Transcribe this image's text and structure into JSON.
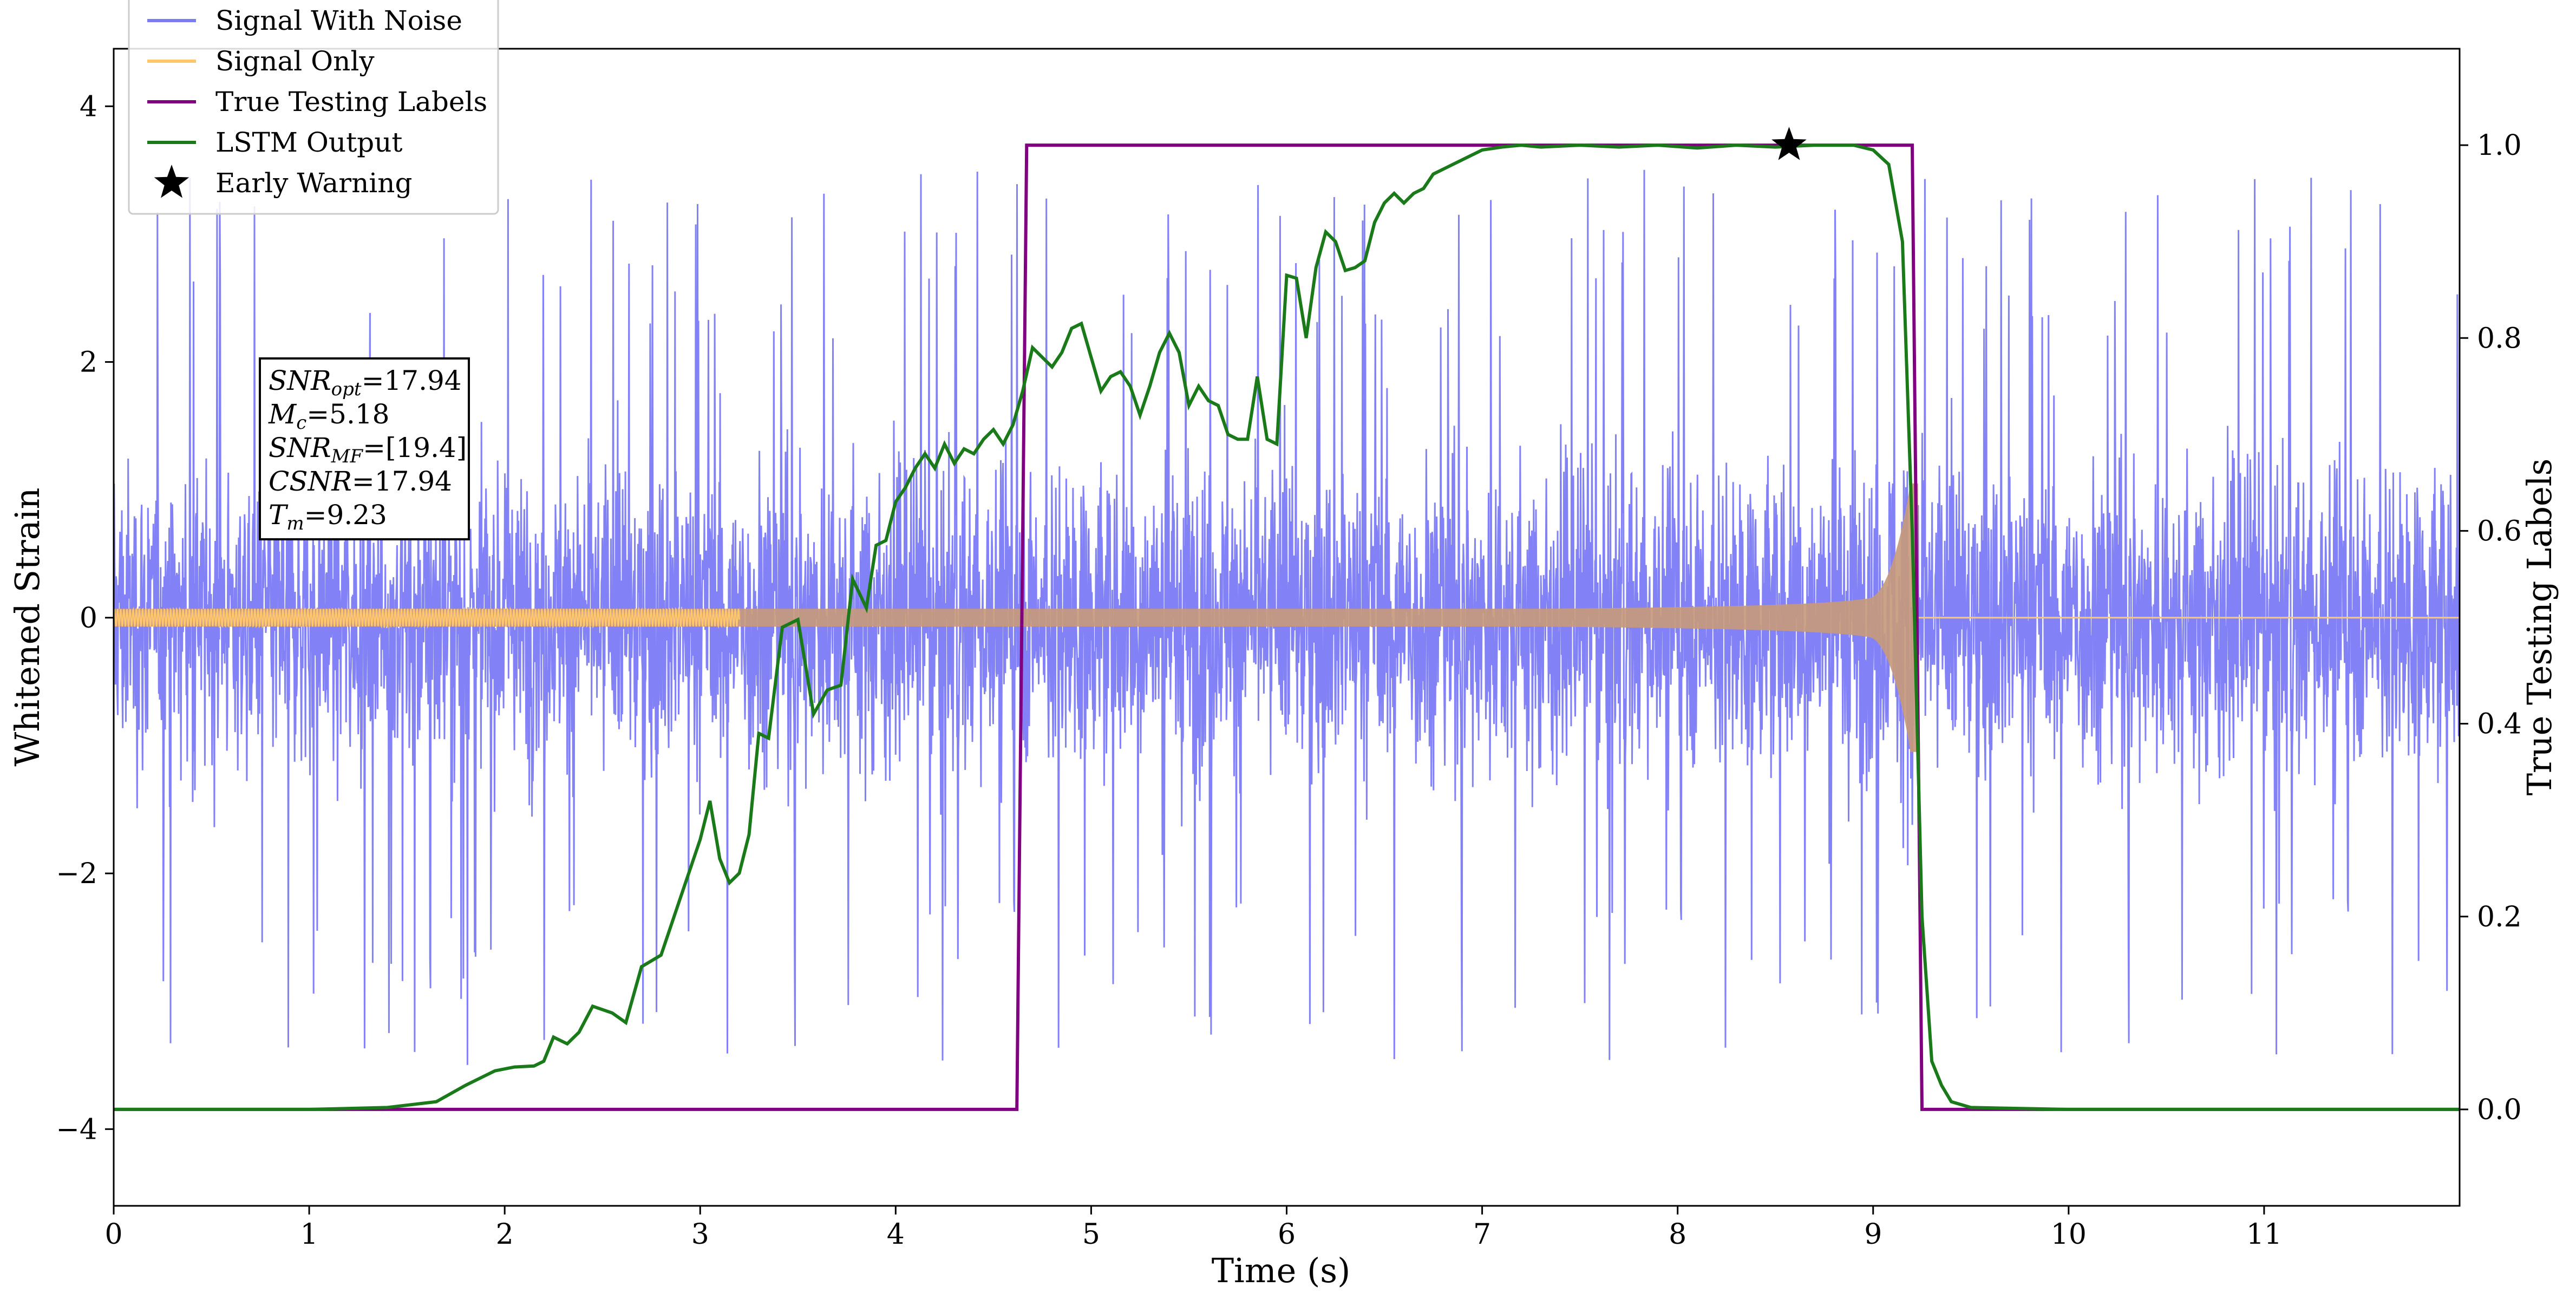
{
  "chart_data": {
    "type": "line",
    "xlabel": "Time (s)",
    "ylabel_left": "Whitened Strain",
    "ylabel_right": "True Testing Labels",
    "xlim": [
      0,
      12
    ],
    "ylim_left": [
      -4.6,
      4.45
    ],
    "ylim_right": [
      -0.1,
      1.1
    ],
    "x_ticks": [
      0,
      1,
      2,
      3,
      4,
      5,
      6,
      7,
      8,
      9,
      10,
      11
    ],
    "y_ticks_left": [
      -4,
      -2,
      0,
      2,
      4
    ],
    "y_ticks_left_labels": [
      "−4",
      "−2",
      "0",
      "2",
      "4"
    ],
    "y_ticks_right": [
      0.0,
      0.2,
      0.4,
      0.6,
      0.8,
      1.0
    ],
    "y_ticks_right_labels": [
      "0.0",
      "0.2",
      "0.4",
      "0.6",
      "0.8",
      "1.0"
    ],
    "legend_placement": "upper-left",
    "series": [
      {
        "name": "Signal With Noise",
        "color": "#7b7bf5",
        "axis": "left",
        "description_values": {
          "noise_typical_range": [
            -1.0,
            1.0
          ],
          "spike_max": 4.05,
          "spike_min": -4.2
        }
      },
      {
        "name": "Signal Only",
        "color": "#ffc66e",
        "axis": "left",
        "description_values": {
          "chirp_start_time": 0,
          "merger_time": 9.23,
          "start_amplitude": 0.07,
          "peak_amplitude": 1.05
        }
      },
      {
        "name": "True Testing Labels",
        "color": "#800080",
        "axis": "right",
        "x": [
          0,
          4.62,
          4.67,
          9.2,
          9.25,
          12
        ],
        "y": [
          0,
          0,
          1,
          1,
          0,
          0
        ]
      },
      {
        "name": "LSTM Output",
        "color": "#1a7a1a",
        "axis": "right",
        "x": [
          0,
          0.5,
          1.0,
          1.4,
          1.65,
          1.8,
          1.95,
          2.05,
          2.15,
          2.2,
          2.25,
          2.32,
          2.38,
          2.45,
          2.55,
          2.62,
          2.7,
          2.8,
          2.9,
          3.0,
          3.05,
          3.1,
          3.15,
          3.2,
          3.25,
          3.3,
          3.35,
          3.42,
          3.5,
          3.58,
          3.65,
          3.72,
          3.78,
          3.85,
          3.9,
          3.95,
          4.0,
          4.05,
          4.1,
          4.15,
          4.2,
          4.25,
          4.3,
          4.35,
          4.4,
          4.45,
          4.5,
          4.55,
          4.6,
          4.65,
          4.7,
          4.75,
          4.8,
          4.85,
          4.9,
          4.95,
          5.0,
          5.05,
          5.1,
          5.15,
          5.2,
          5.25,
          5.3,
          5.35,
          5.4,
          5.45,
          5.5,
          5.55,
          5.6,
          5.65,
          5.7,
          5.75,
          5.8,
          5.85,
          5.9,
          5.95,
          6.0,
          6.05,
          6.1,
          6.15,
          6.2,
          6.25,
          6.3,
          6.35,
          6.4,
          6.45,
          6.5,
          6.55,
          6.6,
          6.65,
          6.7,
          6.75,
          6.8,
          6.85,
          6.9,
          6.95,
          7.0,
          7.1,
          7.2,
          7.3,
          7.5,
          7.7,
          7.9,
          8.1,
          8.3,
          8.5,
          8.7,
          8.9,
          9.0,
          9.08,
          9.15,
          9.2,
          9.25,
          9.3,
          9.35,
          9.4,
          9.5,
          10.0,
          11.0,
          12.0
        ],
        "y": [
          0,
          0,
          0,
          0.002,
          0.008,
          0.025,
          0.04,
          0.044,
          0.045,
          0.05,
          0.075,
          0.068,
          0.08,
          0.107,
          0.1,
          0.09,
          0.148,
          0.16,
          0.22,
          0.28,
          0.32,
          0.26,
          0.235,
          0.245,
          0.285,
          0.39,
          0.385,
          0.5,
          0.508,
          0.41,
          0.435,
          0.44,
          0.55,
          0.52,
          0.585,
          0.59,
          0.63,
          0.645,
          0.665,
          0.68,
          0.665,
          0.69,
          0.67,
          0.685,
          0.68,
          0.695,
          0.705,
          0.69,
          0.71,
          0.745,
          0.79,
          0.78,
          0.77,
          0.785,
          0.81,
          0.815,
          0.78,
          0.745,
          0.76,
          0.765,
          0.75,
          0.72,
          0.75,
          0.785,
          0.805,
          0.785,
          0.73,
          0.75,
          0.735,
          0.73,
          0.7,
          0.695,
          0.695,
          0.76,
          0.695,
          0.69,
          0.865,
          0.862,
          0.8,
          0.873,
          0.91,
          0.9,
          0.87,
          0.873,
          0.88,
          0.92,
          0.94,
          0.95,
          0.94,
          0.95,
          0.955,
          0.97,
          0.975,
          0.98,
          0.985,
          0.99,
          0.995,
          0.998,
          1.0,
          0.998,
          1.0,
          0.998,
          1.0,
          0.997,
          1.0,
          0.998,
          1.0,
          1.0,
          0.995,
          0.98,
          0.9,
          0.6,
          0.2,
          0.05,
          0.025,
          0.008,
          0.002,
          0,
          0,
          0
        ]
      }
    ],
    "markers": [
      {
        "name": "Early Warning",
        "symbol": "star",
        "color": "#000000",
        "x": 8.57,
        "y": 1.0,
        "axis": "right"
      }
    ],
    "annotation": {
      "lines": [
        {
          "sym": "SNR",
          "sub": "opt",
          "value": "=17.94"
        },
        {
          "sym": "M",
          "sub": "c",
          "value": "=5.18"
        },
        {
          "sym": "SNR",
          "sub": "MF",
          "value": "=[19.4]"
        },
        {
          "sym": "CSNR",
          "sub": "",
          "value": "=17.94"
        },
        {
          "sym": "T",
          "sub": "m",
          "value": "=9.23"
        }
      ]
    }
  }
}
